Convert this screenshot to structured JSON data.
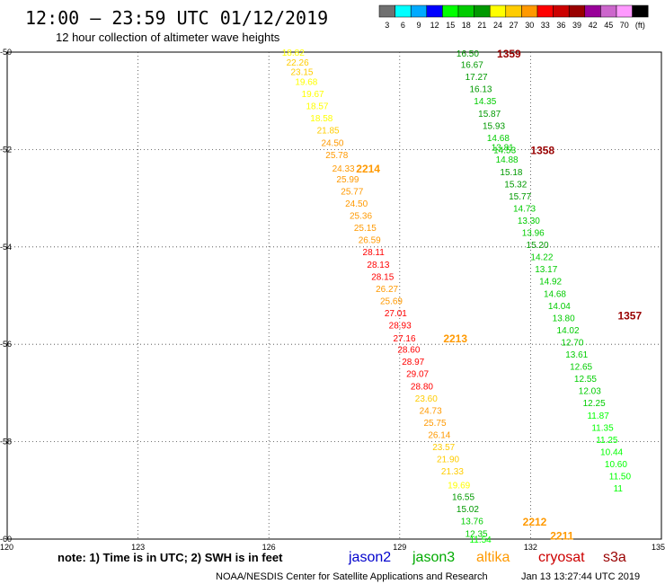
{
  "header": {
    "title": "12:00 – 23:59 UTC 01/12/2019",
    "subtitle": "12 hour collection of altimeter wave heights"
  },
  "colorbar": {
    "colors": [
      "#707070",
      "#00ffff",
      "#00aaff",
      "#0000ff",
      "#00ff00",
      "#00cc00",
      "#009900",
      "#ffff00",
      "#ffcc00",
      "#ff9900",
      "#ff0000",
      "#cc0000",
      "#990000",
      "#990099",
      "#cc66cc",
      "#ff99ff",
      "#000000"
    ],
    "labels": [
      "3",
      "6",
      "9",
      "12",
      "15",
      "18",
      "21",
      "24",
      "27",
      "30",
      "33",
      "36",
      "39",
      "42",
      "45",
      "70",
      "(ft)"
    ]
  },
  "footer": {
    "note": "note:  1) Time is in UTC;  2) SWH is in feet",
    "credit": "NOAA/NESDIS Center for Satellite Applications and Research",
    "timestamp": "Jan 13 13:27:44 UTC 2019",
    "legend": [
      {
        "name": "jason2",
        "color": "#0000cc"
      },
      {
        "name": "jason3",
        "color": "#00aa00"
      },
      {
        "name": "altika",
        "color": "#ff9900"
      },
      {
        "name": "cryosat",
        "color": "#cc0000"
      },
      {
        "name": "s3a",
        "color": "#990000"
      }
    ]
  },
  "chart_data": {
    "type": "scatter",
    "title": "12:00 – 23:59 UTC 01/12/2019",
    "xlim": [
      120,
      135
    ],
    "ylim": [
      -60,
      -50
    ],
    "xticks": [
      "120",
      "123",
      "126",
      "129",
      "132",
      "135"
    ],
    "yticks": [
      "-50",
      "-52",
      "-54",
      "-56",
      "-58",
      "-60"
    ],
    "grid": true,
    "tracks": [
      {
        "satellite": "altika",
        "color": "#ff9900",
        "labels": [
          {
            "text": "2214",
            "x": 128.0,
            "y": -52.38
          },
          {
            "text": "2213",
            "x": 130.0,
            "y": -55.87
          },
          {
            "text": "2212",
            "x": 131.82,
            "y": -59.63
          },
          {
            "text": "2211",
            "x": 132.45,
            "y": -59.92
          }
        ],
        "points": [
          {
            "x": 126.3,
            "y": -50.0,
            "v": 18.82
          },
          {
            "x": 126.4,
            "y": -50.2,
            "v": 22.26
          },
          {
            "x": 126.5,
            "y": -50.4,
            "v": 23.15
          },
          {
            "x": 126.6,
            "y": -50.6,
            "v": 19.68
          },
          {
            "x": 126.75,
            "y": -50.85,
            "v": 19.67
          },
          {
            "x": 126.85,
            "y": -51.1,
            "v": 18.57
          },
          {
            "x": 126.95,
            "y": -51.35,
            "v": 18.58
          },
          {
            "x": 127.1,
            "y": -51.6,
            "v": 21.85
          },
          {
            "x": 127.2,
            "y": -51.85,
            "v": 24.5
          },
          {
            "x": 127.3,
            "y": -52.1,
            "v": 25.78
          },
          {
            "x": 127.45,
            "y": -52.38,
            "v": 24.33
          },
          {
            "x": 127.55,
            "y": -52.6,
            "v": 25.99
          },
          {
            "x": 127.65,
            "y": -52.85,
            "v": 25.77
          },
          {
            "x": 127.75,
            "y": -53.1,
            "v": 24.5
          },
          {
            "x": 127.85,
            "y": -53.35,
            "v": 25.36
          },
          {
            "x": 127.95,
            "y": -53.6,
            "v": 25.15
          },
          {
            "x": 128.05,
            "y": -53.85,
            "v": 26.59
          },
          {
            "x": 128.15,
            "y": -54.1,
            "v": 28.11
          },
          {
            "x": 128.25,
            "y": -54.35,
            "v": 28.13
          },
          {
            "x": 128.35,
            "y": -54.6,
            "v": 28.15
          },
          {
            "x": 128.45,
            "y": -54.85,
            "v": 26.27
          },
          {
            "x": 128.55,
            "y": -55.1,
            "v": 25.69
          },
          {
            "x": 128.65,
            "y": -55.35,
            "v": 27.01
          },
          {
            "x": 128.75,
            "y": -55.6,
            "v": 28.93
          },
          {
            "x": 128.85,
            "y": -55.87,
            "v": 27.16
          },
          {
            "x": 128.95,
            "y": -56.1,
            "v": 28.6
          },
          {
            "x": 129.05,
            "y": -56.35,
            "v": 28.97
          },
          {
            "x": 129.15,
            "y": -56.6,
            "v": 29.07
          },
          {
            "x": 129.25,
            "y": -56.85,
            "v": 28.8
          },
          {
            "x": 129.35,
            "y": -57.1,
            "v": 23.6
          },
          {
            "x": 129.45,
            "y": -57.35,
            "v": 24.73
          },
          {
            "x": 129.55,
            "y": -57.6,
            "v": 25.75
          },
          {
            "x": 129.65,
            "y": -57.85,
            "v": 26.14
          },
          {
            "x": 129.75,
            "y": -58.1,
            "v": 23.57
          },
          {
            "x": 129.85,
            "y": -58.35,
            "v": 21.9
          },
          {
            "x": 129.95,
            "y": -58.6,
            "v": 21.33
          },
          {
            "x": 130.1,
            "y": -58.88,
            "v": 19.69
          },
          {
            "x": 130.2,
            "y": -59.12,
            "v": 16.55
          },
          {
            "x": 130.3,
            "y": -59.37,
            "v": 15.02
          },
          {
            "x": 130.4,
            "y": -59.62,
            "v": 13.76
          },
          {
            "x": 130.5,
            "y": -59.88,
            "v": 12.35
          },
          {
            "x": 130.6,
            "y": -60.0,
            "v": 11.54
          }
        ]
      },
      {
        "satellite": "s3a",
        "color": "#990000",
        "labels": [
          {
            "text": "1359",
            "x": 131.23,
            "y": -50.02
          },
          {
            "text": "1358",
            "x": 132.0,
            "y": -52.0
          },
          {
            "text": "1357",
            "x": 134.0,
            "y": -55.4
          }
        ],
        "points": [
          {
            "x": 130.3,
            "y": -50.02,
            "v": 16.5
          },
          {
            "x": 130.4,
            "y": -50.25,
            "v": 16.67
          },
          {
            "x": 130.5,
            "y": -50.5,
            "v": 17.27
          },
          {
            "x": 130.6,
            "y": -50.75,
            "v": 16.13
          },
          {
            "x": 130.7,
            "y": -51.0,
            "v": 14.35
          },
          {
            "x": 130.8,
            "y": -51.25,
            "v": 15.87
          },
          {
            "x": 130.9,
            "y": -51.5,
            "v": 15.93
          },
          {
            "x": 131.0,
            "y": -51.75,
            "v": 14.68
          },
          {
            "x": 131.1,
            "y": -51.95,
            "v": 13.81
          },
          {
            "x": 131.15,
            "y": -52.0,
            "v": 14.53
          },
          {
            "x": 131.2,
            "y": -52.2,
            "v": 14.88
          },
          {
            "x": 131.3,
            "y": -52.45,
            "v": 15.18
          },
          {
            "x": 131.4,
            "y": -52.7,
            "v": 15.32
          },
          {
            "x": 131.5,
            "y": -52.95,
            "v": 15.77
          },
          {
            "x": 131.6,
            "y": -53.2,
            "v": 14.73
          },
          {
            "x": 131.7,
            "y": -53.45,
            "v": 13.3
          },
          {
            "x": 131.8,
            "y": -53.7,
            "v": 13.96
          },
          {
            "x": 131.9,
            "y": -53.95,
            "v": 15.2
          },
          {
            "x": 132.0,
            "y": -54.2,
            "v": 14.22
          },
          {
            "x": 132.1,
            "y": -54.45,
            "v": 13.17
          },
          {
            "x": 132.2,
            "y": -54.7,
            "v": 14.92
          },
          {
            "x": 132.3,
            "y": -54.95,
            "v": 14.68
          },
          {
            "x": 132.4,
            "y": -55.2,
            "v": 14.04
          },
          {
            "x": 132.5,
            "y": -55.45,
            "v": 13.8
          },
          {
            "x": 132.6,
            "y": -55.7,
            "v": 14.02
          },
          {
            "x": 132.7,
            "y": -55.95,
            "v": 12.7
          },
          {
            "x": 132.8,
            "y": -56.2,
            "v": 13.61
          },
          {
            "x": 132.9,
            "y": -56.45,
            "v": 12.65
          },
          {
            "x": 133.0,
            "y": -56.7,
            "v": 12.55
          },
          {
            "x": 133.1,
            "y": -56.95,
            "v": 12.03
          },
          {
            "x": 133.2,
            "y": -57.2,
            "v": 12.25
          },
          {
            "x": 133.3,
            "y": -57.45,
            "v": 11.87
          },
          {
            "x": 133.4,
            "y": -57.7,
            "v": 11.35
          },
          {
            "x": 133.5,
            "y": -57.95,
            "v": 11.25
          },
          {
            "x": 133.6,
            "y": -58.2,
            "v": 10.44
          },
          {
            "x": 133.7,
            "y": -58.45,
            "v": 10.6
          },
          {
            "x": 133.8,
            "y": -58.7,
            "v": 11.5
          },
          {
            "x": 133.9,
            "y": -58.95,
            "v": 11
          }
        ]
      }
    ]
  }
}
